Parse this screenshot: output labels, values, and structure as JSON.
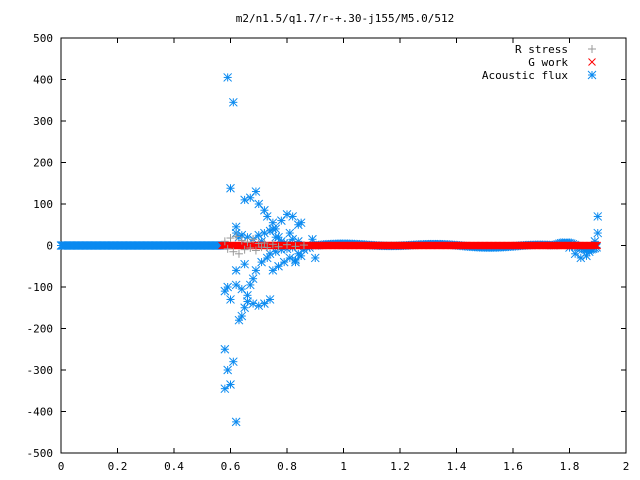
{
  "chart_data": {
    "type": "scatter",
    "title": "m2/n1.5/q1.7/r-+.30-j155/M5.0/512",
    "xlabel": "",
    "ylabel": "",
    "xlim": [
      0,
      2
    ],
    "ylim": [
      -500,
      500
    ],
    "x_ticks": [
      "0",
      "0.2",
      "0.4",
      "0.6",
      "0.8",
      "1",
      "1.2",
      "1.4",
      "1.6",
      "1.8",
      "2"
    ],
    "y_ticks": [
      "500",
      "400",
      "300",
      "200",
      "100",
      "0",
      "-100",
      "-200",
      "-300",
      "-400",
      "-500"
    ],
    "grid": false,
    "legend_position": "top-right",
    "series": [
      {
        "name": "R stress",
        "marker": "plus",
        "color": "#999999",
        "x": [
          0.58,
          0.59,
          0.6,
          0.61,
          0.62,
          0.63,
          0.64,
          0.65,
          0.66,
          0.67,
          0.68,
          0.69,
          0.7,
          0.71,
          0.72,
          0.73,
          0.75,
          0.77,
          0.8,
          0.83,
          0.86
        ],
        "y": [
          10,
          -8,
          18,
          -15,
          22,
          -20,
          12,
          -10,
          8,
          -6,
          15,
          -12,
          5,
          -4,
          6,
          -5,
          3,
          -3,
          2,
          -2,
          1
        ]
      },
      {
        "name": "G work",
        "marker": "cross",
        "color": "#ff0000",
        "x_range": [
          0.57,
          1.9
        ],
        "y": 0
      },
      {
        "name": "Acoustic flux",
        "marker": "star",
        "color": "#0a8af0",
        "x": [
          0.59,
          0.61,
          0.6,
          0.62,
          0.63,
          0.65,
          0.67,
          0.69,
          0.7,
          0.72,
          0.73,
          0.75,
          0.76,
          0.78,
          0.8,
          0.82,
          0.84,
          0.85,
          0.58,
          0.59,
          0.6,
          0.62,
          0.64,
          0.66,
          0.68,
          0.7,
          0.72,
          0.74,
          0.75,
          0.77,
          0.79,
          0.81,
          0.83,
          0.85,
          0.58,
          0.58,
          0.59,
          0.6,
          0.61,
          0.62,
          0.63,
          0.64,
          0.65,
          0.66,
          0.67,
          0.68,
          0.69,
          0.71,
          0.73,
          0.74,
          0.76,
          0.78,
          0.8,
          0.82,
          0.84,
          0.86,
          0.88,
          0.9,
          0.62,
          0.64,
          0.66,
          0.68,
          0.7,
          0.72,
          0.74,
          0.76,
          0.78,
          0.8,
          0.82,
          0.84,
          0.62,
          0.65,
          0.71,
          0.75,
          0.77,
          0.79,
          0.81,
          0.83,
          0.87,
          0.89
        ],
        "y": [
          405,
          345,
          138,
          45,
          20,
          110,
          115,
          130,
          100,
          85,
          70,
          55,
          40,
          60,
          75,
          70,
          50,
          55,
          -110,
          -100,
          -130,
          -95,
          -105,
          -135,
          -140,
          -145,
          -140,
          -130,
          -60,
          -50,
          -40,
          -30,
          -35,
          -25,
          -250,
          -345,
          -300,
          -335,
          -280,
          -425,
          -180,
          -170,
          -150,
          -120,
          -95,
          -80,
          -60,
          -40,
          -30,
          -20,
          -15,
          -10,
          -8,
          -5,
          -20,
          -10,
          -5,
          -30,
          30,
          25,
          20,
          15,
          25,
          30,
          35,
          20,
          10,
          5,
          15,
          10,
          -60,
          -45,
          10,
          40,
          20,
          5,
          30,
          -40,
          -5,
          15
        ],
        "line_x_range": [
          0,
          0.58
        ],
        "line_y": 0,
        "wave_x_range": [
          0.9,
          1.9
        ],
        "right_end_points": {
          "x": [
            1.8,
            1.82,
            1.84,
            1.86,
            1.87,
            1.88,
            1.89,
            1.9,
            1.9
          ],
          "y": [
            -5,
            -20,
            -30,
            -25,
            -15,
            -5,
            10,
            30,
            70
          ]
        }
      }
    ]
  }
}
